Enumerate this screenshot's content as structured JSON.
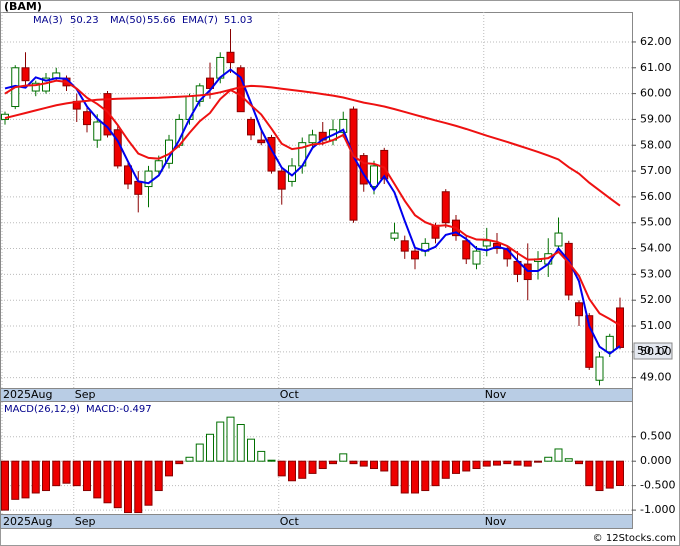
{
  "chart_data": [
    {
      "type": "candlestick",
      "title": "(BAM)",
      "categories": [
        "2025Aug",
        null,
        null,
        null,
        null,
        null,
        null,
        "Sep",
        null,
        null,
        null,
        null,
        null,
        null,
        null,
        null,
        null,
        null,
        null,
        null,
        null,
        null,
        null,
        null,
        null,
        null,
        null,
        "Oct",
        null,
        null,
        null,
        null,
        null,
        null,
        null,
        null,
        null,
        null,
        null,
        null,
        null,
        null,
        null,
        null,
        null,
        null,
        null,
        "Nov",
        null,
        null,
        null,
        null,
        null,
        null,
        null,
        null,
        null,
        null,
        null,
        null,
        null
      ],
      "open": [
        59.0,
        59.5,
        61.0,
        60.1,
        60.1,
        60.6,
        60.6,
        59.7,
        59.3,
        58.2,
        60.0,
        58.6,
        57.2,
        56.6,
        56.4,
        57.0,
        57.3,
        58.0,
        59.0,
        59.7,
        60.6,
        60.6,
        61.6,
        61.0,
        59.0,
        58.2,
        58.3,
        57.0,
        56.6,
        57.2,
        58.1,
        58.5,
        58.2,
        58.5,
        59.4,
        57.6,
        56.4,
        57.8,
        54.4,
        54.3,
        53.9,
        53.9,
        54.9,
        56.2,
        55.1,
        54.3,
        53.4,
        54.1,
        54.2,
        54.0,
        53.5,
        53.4,
        53.5,
        53.4,
        54.1,
        54.2,
        51.9,
        51.4,
        48.9,
        50.0,
        51.7
      ],
      "high": [
        59.3,
        61.1,
        61.6,
        60.5,
        60.8,
        61.0,
        60.7,
        60.0,
        59.5,
        59.2,
        60.1,
        58.8,
        57.4,
        57.0,
        57.2,
        57.6,
        58.4,
        59.2,
        60.0,
        60.4,
        61.2,
        61.6,
        62.5,
        61.1,
        59.1,
        58.6,
        58.4,
        57.1,
        57.5,
        58.3,
        58.6,
        58.9,
        59.0,
        59.3,
        59.5,
        57.7,
        57.4,
        57.9,
        55.0,
        54.5,
        54.0,
        54.4,
        55.0,
        56.3,
        55.3,
        54.5,
        54.1,
        54.8,
        54.6,
        54.1,
        53.9,
        54.2,
        53.9,
        54.4,
        55.2,
        54.3,
        52.0,
        51.5,
        50.0,
        50.7,
        52.1
      ],
      "low": [
        58.8,
        59.4,
        60.2,
        59.9,
        60.0,
        60.5,
        60.1,
        58.9,
        58.5,
        57.9,
        58.3,
        57.1,
        56.3,
        55.4,
        55.6,
        56.9,
        57.1,
        57.9,
        58.8,
        59.5,
        59.8,
        60.4,
        60.8,
        59.3,
        58.2,
        58.0,
        56.9,
        55.7,
        56.4,
        56.9,
        57.9,
        58.0,
        58.0,
        58.3,
        55.0,
        56.2,
        56.1,
        56.5,
        54.3,
        53.6,
        53.2,
        53.7,
        54.2,
        54.8,
        54.3,
        53.4,
        53.2,
        53.7,
        53.8,
        53.3,
        52.7,
        52.0,
        52.8,
        52.9,
        54.0,
        52.0,
        51.0,
        49.3,
        48.7,
        49.8,
        50.1
      ],
      "close": [
        59.2,
        61.0,
        60.5,
        60.4,
        60.6,
        60.8,
        60.3,
        59.4,
        58.8,
        58.9,
        58.4,
        57.2,
        56.5,
        56.1,
        57.0,
        57.4,
        58.2,
        59.0,
        59.9,
        60.3,
        60.2,
        61.4,
        61.2,
        59.3,
        58.4,
        58.1,
        57.0,
        56.3,
        57.2,
        58.1,
        58.4,
        58.2,
        58.6,
        59.0,
        55.1,
        56.5,
        57.2,
        56.7,
        54.6,
        53.9,
        53.6,
        54.2,
        54.4,
        55.0,
        54.5,
        53.6,
        53.9,
        54.3,
        54.0,
        53.6,
        53.0,
        52.8,
        53.6,
        53.8,
        54.6,
        52.2,
        51.4,
        49.4,
        49.8,
        50.6,
        50.17
      ],
      "up_color": "#006f00",
      "down_color": "#ee0000",
      "series": [
        {
          "name": "MA(3)",
          "color": "#0000ee",
          "values": [
            60.2,
            60.3,
            60.23,
            60.63,
            60.5,
            60.6,
            60.57,
            60.17,
            59.5,
            59.03,
            58.7,
            58.17,
            57.37,
            56.6,
            56.53,
            56.83,
            57.53,
            58.2,
            59.03,
            59.73,
            60.13,
            60.63,
            60.93,
            60.63,
            59.63,
            58.6,
            57.83,
            57.13,
            56.83,
            57.2,
            57.9,
            58.23,
            58.4,
            58.6,
            57.57,
            56.87,
            56.27,
            56.8,
            56.17,
            55.07,
            54.03,
            53.9,
            54.07,
            54.53,
            54.63,
            54.37,
            54.0,
            53.93,
            54.07,
            53.97,
            53.53,
            53.13,
            53.13,
            53.4,
            54.0,
            53.53,
            52.73,
            51.0,
            50.2,
            49.93,
            50.23
          ]
        },
        {
          "name": "MA(50)",
          "color": "#ee1111",
          "values": [
            59.05,
            59.15,
            59.25,
            59.35,
            59.45,
            59.55,
            59.62,
            59.68,
            59.72,
            59.76,
            59.78,
            59.8,
            59.81,
            59.82,
            59.83,
            59.84,
            59.86,
            59.88,
            59.9,
            59.93,
            59.97,
            60.05,
            60.15,
            60.25,
            60.3,
            60.28,
            60.24,
            60.19,
            60.14,
            60.09,
            60.04,
            59.98,
            59.92,
            59.85,
            59.75,
            59.65,
            59.58,
            59.5,
            59.4,
            59.29,
            59.18,
            59.07,
            58.96,
            58.86,
            58.75,
            58.63,
            58.5,
            58.37,
            58.25,
            58.13,
            58.0,
            57.87,
            57.74,
            57.6,
            57.45,
            57.15,
            56.9,
            56.55,
            56.25,
            55.95,
            55.66
          ]
        },
        {
          "name": "EMA(7)",
          "color": "#ee1111",
          "values": [
            60.0,
            60.25,
            60.31,
            60.33,
            60.4,
            60.5,
            60.45,
            60.19,
            59.84,
            59.6,
            59.3,
            58.78,
            58.2,
            57.68,
            57.51,
            57.48,
            57.66,
            57.99,
            58.48,
            58.93,
            59.25,
            59.79,
            60.14,
            59.93,
            59.55,
            59.19,
            58.64,
            58.06,
            57.85,
            57.91,
            58.03,
            58.07,
            58.2,
            58.4,
            57.58,
            57.31,
            57.28,
            57.14,
            56.5,
            55.85,
            55.29,
            55.02,
            54.87,
            54.9,
            54.8,
            54.5,
            54.35,
            54.34,
            54.26,
            54.1,
            53.82,
            53.57,
            53.58,
            53.63,
            53.87,
            53.45,
            52.94,
            52.05,
            51.49,
            51.27,
            51.03
          ]
        }
      ],
      "ylim": [
        48.6,
        63.16
      ],
      "yticks": [
        {
          "value": 49,
          "label": "49.00"
        },
        {
          "value": 50,
          "label": "50.00"
        },
        {
          "value": 51,
          "label": "51.00"
        },
        {
          "value": 52,
          "label": "52.00"
        },
        {
          "value": 53,
          "label": "53.00"
        },
        {
          "value": 54,
          "label": "54.00"
        },
        {
          "value": 55,
          "label": "55.00"
        },
        {
          "value": 56,
          "label": "56.00"
        },
        {
          "value": 57,
          "label": "57.00"
        },
        {
          "value": 58,
          "label": "58.00"
        },
        {
          "value": 59,
          "label": "59.00"
        },
        {
          "value": 60,
          "label": "60.00"
        },
        {
          "value": 61,
          "label": "61.00"
        },
        {
          "value": 62,
          "label": "62.00"
        }
      ],
      "grid": true
    },
    {
      "type": "bar",
      "title": "MACD(26,12,9)",
      "legend_label": "MACD:-0.497",
      "categories": [
        "2025Aug",
        null,
        null,
        null,
        null,
        null,
        null,
        "Sep",
        null,
        null,
        null,
        null,
        null,
        null,
        null,
        null,
        null,
        null,
        null,
        null,
        null,
        null,
        null,
        null,
        null,
        null,
        null,
        "Oct",
        null,
        null,
        null,
        null,
        null,
        null,
        null,
        null,
        null,
        null,
        null,
        null,
        null,
        null,
        null,
        null,
        null,
        null,
        null,
        "Nov",
        null,
        null,
        null,
        null,
        null,
        null,
        null,
        null,
        null,
        null,
        null,
        null,
        null
      ],
      "values": [
        -1.0,
        -0.78,
        -0.75,
        -0.65,
        -0.6,
        -0.5,
        -0.45,
        -0.5,
        -0.6,
        -0.75,
        -0.85,
        -0.95,
        -1.05,
        -1.05,
        -0.9,
        -0.6,
        -0.3,
        -0.05,
        0.08,
        0.35,
        0.55,
        0.8,
        0.9,
        0.75,
        0.45,
        0.2,
        0.02,
        -0.3,
        -0.4,
        -0.35,
        -0.25,
        -0.15,
        -0.05,
        0.15,
        -0.05,
        -0.1,
        -0.15,
        -0.2,
        -0.5,
        -0.65,
        -0.65,
        -0.6,
        -0.5,
        -0.35,
        -0.25,
        -0.2,
        -0.15,
        -0.1,
        -0.08,
        -0.05,
        -0.08,
        -0.1,
        -0.02,
        0.08,
        0.25,
        0.05,
        -0.05,
        -0.5,
        -0.6,
        -0.55,
        -0.497
      ],
      "up_color": "#006f00",
      "down_color": "#ee0000",
      "ylim": [
        -1.1,
        1.21
      ],
      "yticks": [
        {
          "value": 0.5,
          "label": "0.500"
        },
        {
          "value": 0,
          "label": "0.000"
        },
        {
          "value": -0.5,
          "label": "-0.500"
        },
        {
          "value": -1,
          "label": "-1.000"
        }
      ],
      "grid": true
    }
  ],
  "footer": "© 12Stocks.com"
}
